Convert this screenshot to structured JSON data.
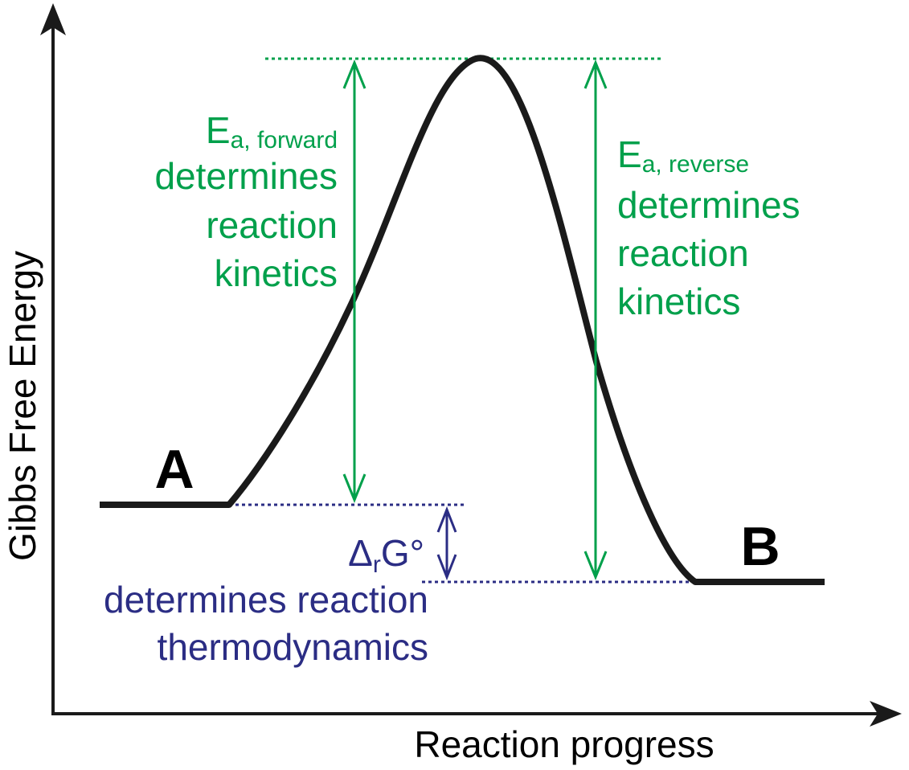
{
  "axes": {
    "y_label": "Gibbs Free Energy",
    "x_label": "Reaction progress"
  },
  "states": {
    "reactant": "A",
    "product": "B"
  },
  "forward_barrier": {
    "symbol": "E",
    "subscript": "a, forward",
    "lines": [
      "determines",
      "reaction",
      "kinetics"
    ]
  },
  "reverse_barrier": {
    "symbol": "E",
    "subscript": "a, reverse",
    "lines": [
      "determines",
      "reaction",
      "kinetics"
    ]
  },
  "free_energy_change": {
    "symbol_delta": "Δ",
    "symbol_sub": "r",
    "symbol_rest": "G°",
    "lines": [
      "determines reaction",
      "thermodynamics"
    ]
  },
  "colors": {
    "curve": "#1a1a1a",
    "kinetics": "#00a04b",
    "thermodynamics": "#2b2d84"
  }
}
